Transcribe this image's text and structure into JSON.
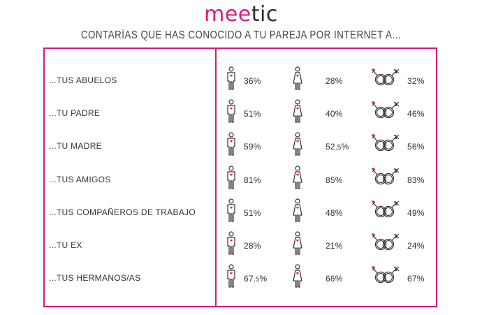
{
  "brand": {
    "logo_text": "meetic",
    "color": "#e0197d"
  },
  "chart_data": {
    "type": "table",
    "title": "CONTARÍAS QUE HAS CONOCIDO A TU PAREJA POR INTERNET A...",
    "categories": [
      "...TUS ABUELOS",
      "...TU PADRE",
      "...TU  MADRE",
      "...TUS AMIGOS",
      "...TUS COMPAÑEROS DE TRABAJO",
      "...TU EX",
      "...TUS HERMANOS/AS"
    ],
    "series": [
      {
        "icon": "man-icon",
        "values": [
          36,
          51,
          59,
          81,
          51,
          28,
          67.5
        ]
      },
      {
        "icon": "woman-icon",
        "values": [
          28,
          40,
          52.5,
          85,
          48,
          21,
          66
        ]
      },
      {
        "icon": "couple-symbol-icon",
        "values": [
          32,
          46,
          56,
          83,
          49,
          24,
          67
        ]
      }
    ],
    "unit": "%"
  }
}
